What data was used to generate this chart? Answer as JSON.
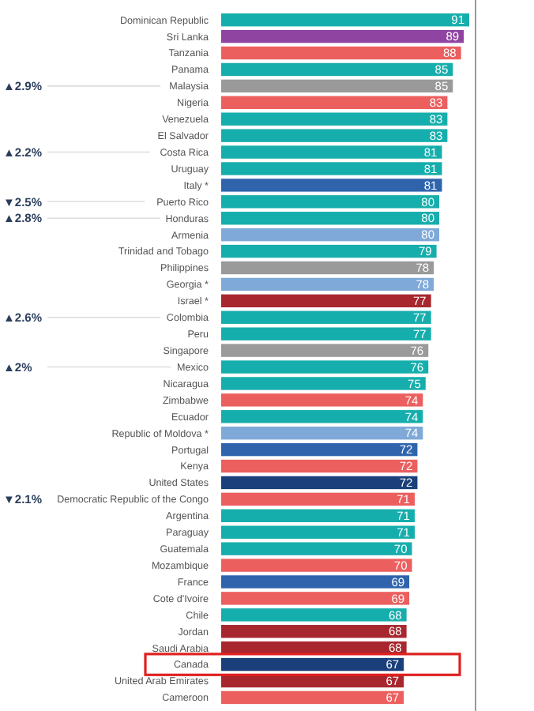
{
  "chart_data": {
    "type": "bar",
    "orientation": "horizontal",
    "data_labels": true,
    "categories": [
      "Dominican Republic",
      "Sri Lanka",
      "Tanzania",
      "Panama",
      "Malaysia",
      "Nigeria",
      "Venezuela",
      "El Salvador",
      "Costa Rica",
      "Uruguay",
      "Italy *",
      "Puerto Rico",
      "Honduras",
      "Armenia",
      "Trinidad and Tobago",
      "Philippines",
      "Georgia *",
      "Israel *",
      "Colombia",
      "Peru",
      "Singapore",
      "Mexico",
      "Nicaragua",
      "Zimbabwe",
      "Ecuador",
      "Republic of Moldova *",
      "Portugal",
      "Kenya",
      "United States",
      "Democratic Republic of the Congo",
      "Argentina",
      "Paraguay",
      "Guatemala",
      "Mozambique",
      "France",
      "Cote d'Ivoire",
      "Chile",
      "Jordan",
      "Saudi Arabia",
      "Canada",
      "United Arab Emirates",
      "Cameroon"
    ],
    "values": [
      91,
      89,
      88,
      85,
      85,
      83,
      83,
      83,
      81,
      81,
      81,
      80,
      80,
      80,
      79,
      78,
      78,
      77,
      77,
      77,
      76,
      76,
      75,
      74,
      74,
      74,
      72,
      72,
      72,
      71,
      71,
      71,
      70,
      70,
      69,
      69,
      68,
      68,
      68,
      67,
      67,
      67
    ],
    "colors": [
      "#16aeac",
      "#8e44a0",
      "#ec5f5f",
      "#16aeac",
      "#9a9a9a",
      "#ec5f5f",
      "#16aeac",
      "#16aeac",
      "#16aeac",
      "#16aeac",
      "#2f64ad",
      "#16aeac",
      "#16aeac",
      "#7fa9d8",
      "#16aeac",
      "#9a9a9a",
      "#7fa9d8",
      "#a8272e",
      "#16aeac",
      "#16aeac",
      "#9a9a9a",
      "#16aeac",
      "#16aeac",
      "#ec5f5f",
      "#16aeac",
      "#7fa9d8",
      "#2f64ad",
      "#ec5f5f",
      "#1a3f7a",
      "#ec5f5f",
      "#16aeac",
      "#16aeac",
      "#16aeac",
      "#ec5f5f",
      "#2f64ad",
      "#ec5f5f",
      "#16aeac",
      "#a8272e",
      "#a8272e",
      "#1a3f7a",
      "#a8272e",
      "#ec5f5f"
    ],
    "annotations": [
      "▲2.9%",
      "▲2.2%",
      "▼2.5%",
      "▲2.8%",
      "▲2.6%",
      "▲2%",
      "▼2.1%"
    ]
  }
}
